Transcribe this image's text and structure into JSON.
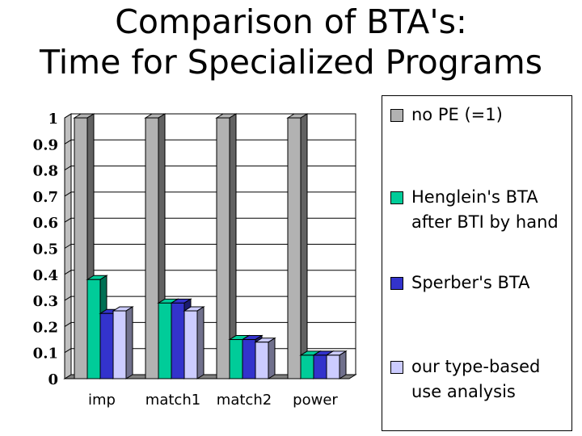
{
  "chart_data": {
    "type": "bar",
    "title": [
      "Comparison of BTA's:",
      "Time for Specialized Programs"
    ],
    "categories": [
      "imp",
      "match1",
      "match2",
      "power"
    ],
    "series": [
      {
        "name": "no PE (=1)",
        "values": [
          1.0,
          1.0,
          1.0,
          1.0
        ],
        "color": "#b2b2b2"
      },
      {
        "name": "Henglein's BTA after BTI by hand",
        "values": [
          0.38,
          0.29,
          0.15,
          0.09
        ],
        "color": "#00cc99"
      },
      {
        "name": "Sperber's BTA",
        "values": [
          0.25,
          0.29,
          0.15,
          0.09
        ],
        "color": "#3333cc"
      },
      {
        "name": "our type-based use analysis",
        "values": [
          0.26,
          0.26,
          0.14,
          0.09
        ],
        "color": "#ccccff"
      }
    ],
    "y_ticks": [
      "0",
      "0.1",
      "0.2",
      "0.3",
      "0.4",
      "0.5",
      "0.6",
      "0.7",
      "0.8",
      "0.9",
      "1"
    ],
    "ylim": [
      0,
      1
    ],
    "xlabel": "",
    "ylabel": "",
    "grid": true,
    "legend_position": "right",
    "bar_style": "3d"
  }
}
